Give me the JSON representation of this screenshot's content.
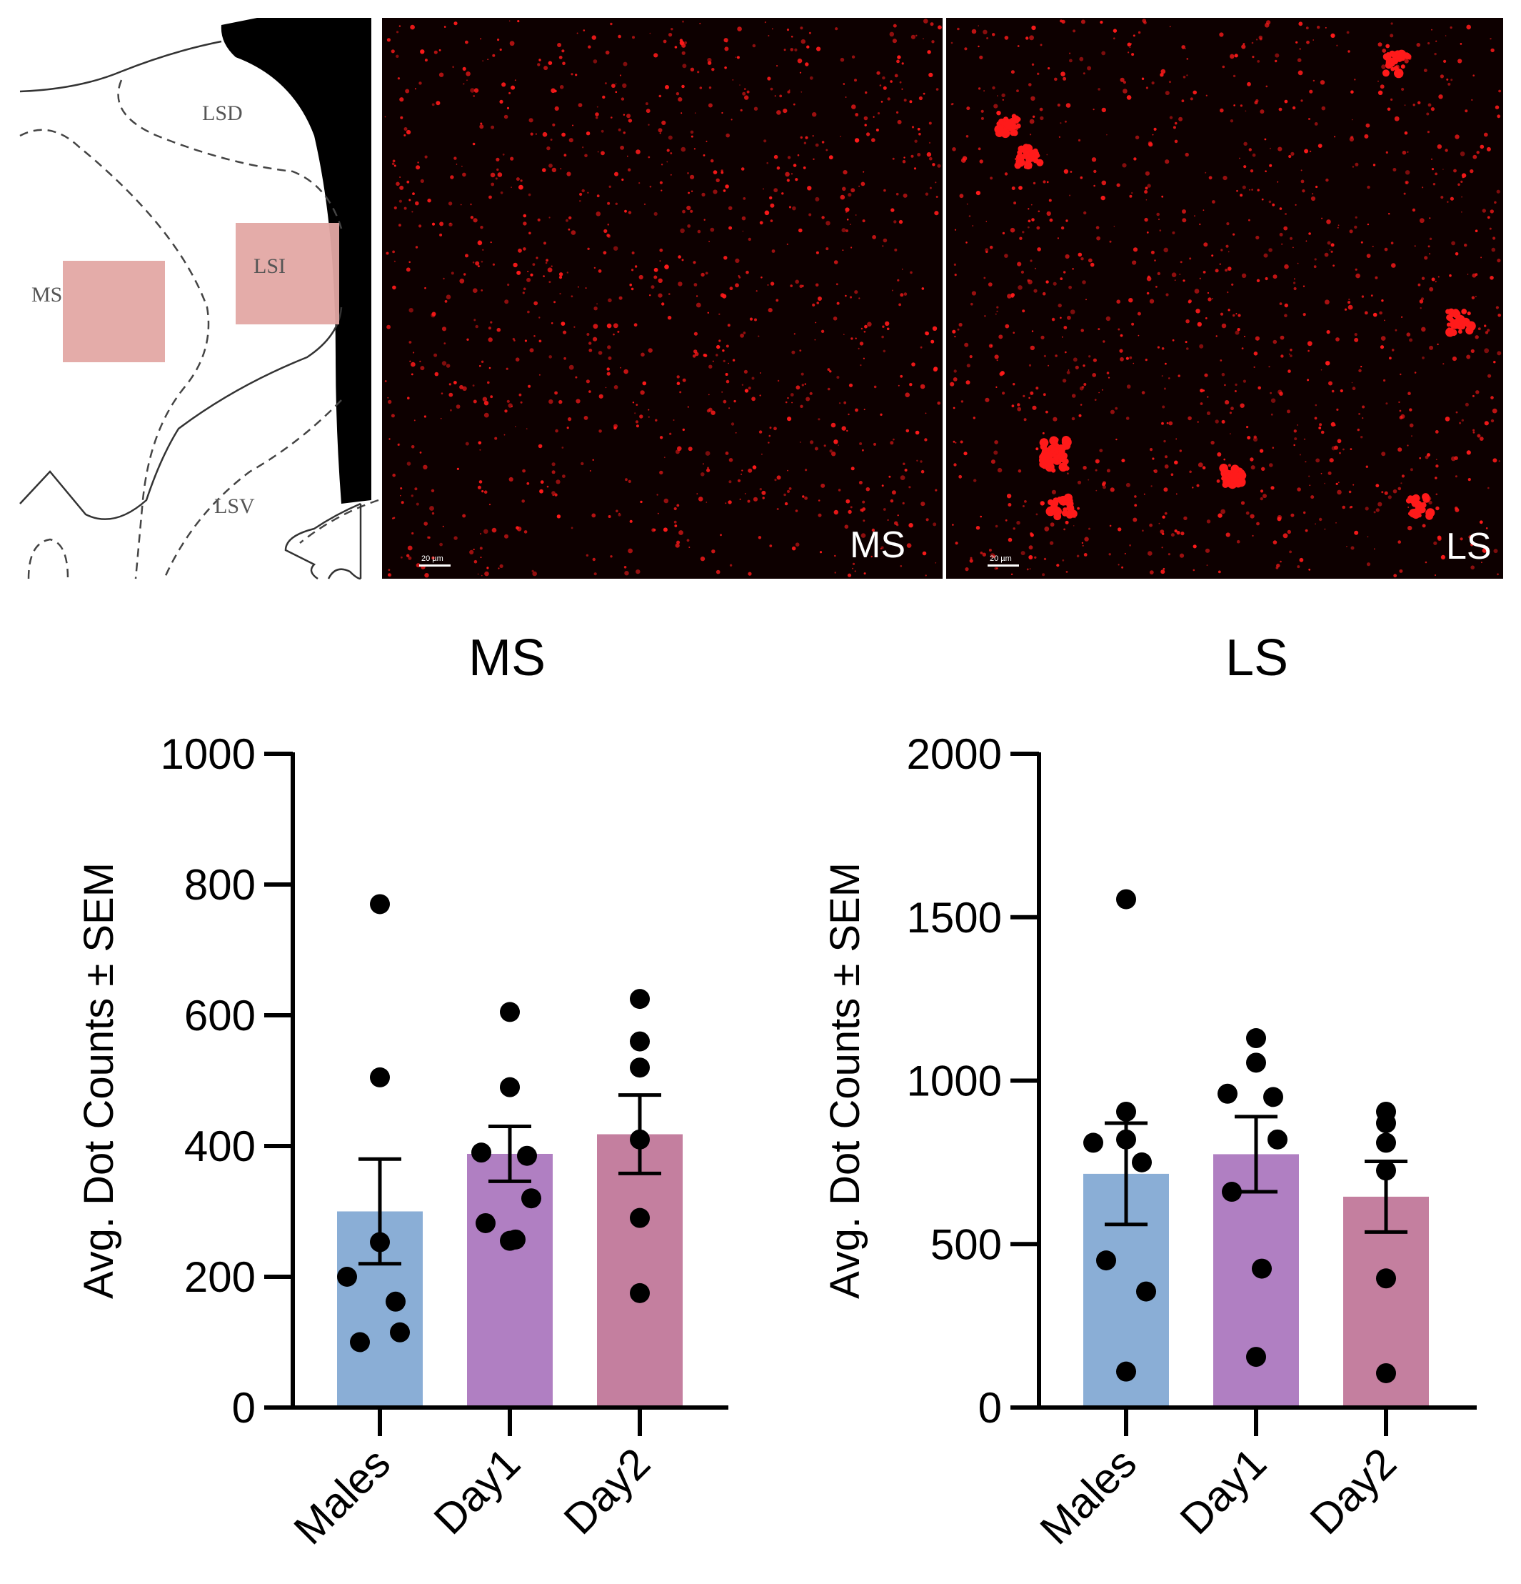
{
  "images": {
    "atlas": {
      "regions": [
        "LSD",
        "LSI",
        "MS",
        "LSV"
      ],
      "roi_color": "#e3a8a4"
    },
    "micrographs": [
      {
        "label": "MS",
        "scale_bar": "20 µm",
        "seed": 7,
        "clusters": 0
      },
      {
        "label": "LS",
        "scale_bar": "20 µm",
        "seed": 19,
        "clusters": 9
      }
    ],
    "puncta_color": "#ff1a1a"
  },
  "chart_data": [
    {
      "type": "bar",
      "title": "MS",
      "xlabel": "",
      "ylabel": "Avg. Dot Counts ± SEM",
      "ylim": [
        0,
        1000
      ],
      "yticks": [
        "0",
        "200",
        "400",
        "600",
        "800",
        "1000"
      ],
      "categories": [
        "Males",
        "Day1",
        "Day2"
      ],
      "values": [
        300,
        388,
        418
      ],
      "sem": [
        80,
        42,
        60
      ],
      "points": [
        [
          770,
          505,
          253,
          200,
          162,
          100,
          115
        ],
        [
          605,
          490,
          390,
          385,
          320,
          282,
          257,
          255
        ],
        [
          625,
          560,
          520,
          410,
          290,
          175
        ]
      ],
      "colors": [
        "#8aaed6",
        "#b07fc2",
        "#c47f9f"
      ]
    },
    {
      "type": "bar",
      "title": "LS",
      "xlabel": "",
      "ylabel": "Avg. Dot Counts ± SEM",
      "ylim": [
        0,
        2000
      ],
      "yticks": [
        "0",
        "500",
        "1000",
        "1500",
        "2000"
      ],
      "categories": [
        "Males",
        "Day1",
        "Day2"
      ],
      "values": [
        715,
        775,
        645
      ],
      "sem": [
        155,
        115,
        108
      ],
      "points": [
        [
          1555,
          905,
          820,
          810,
          750,
          450,
          355,
          110
        ],
        [
          1130,
          1055,
          960,
          950,
          820,
          660,
          425,
          155
        ],
        [
          905,
          870,
          810,
          725,
          395,
          105
        ]
      ],
      "colors": [
        "#8aaed6",
        "#b07fc2",
        "#c47f9f"
      ]
    }
  ]
}
